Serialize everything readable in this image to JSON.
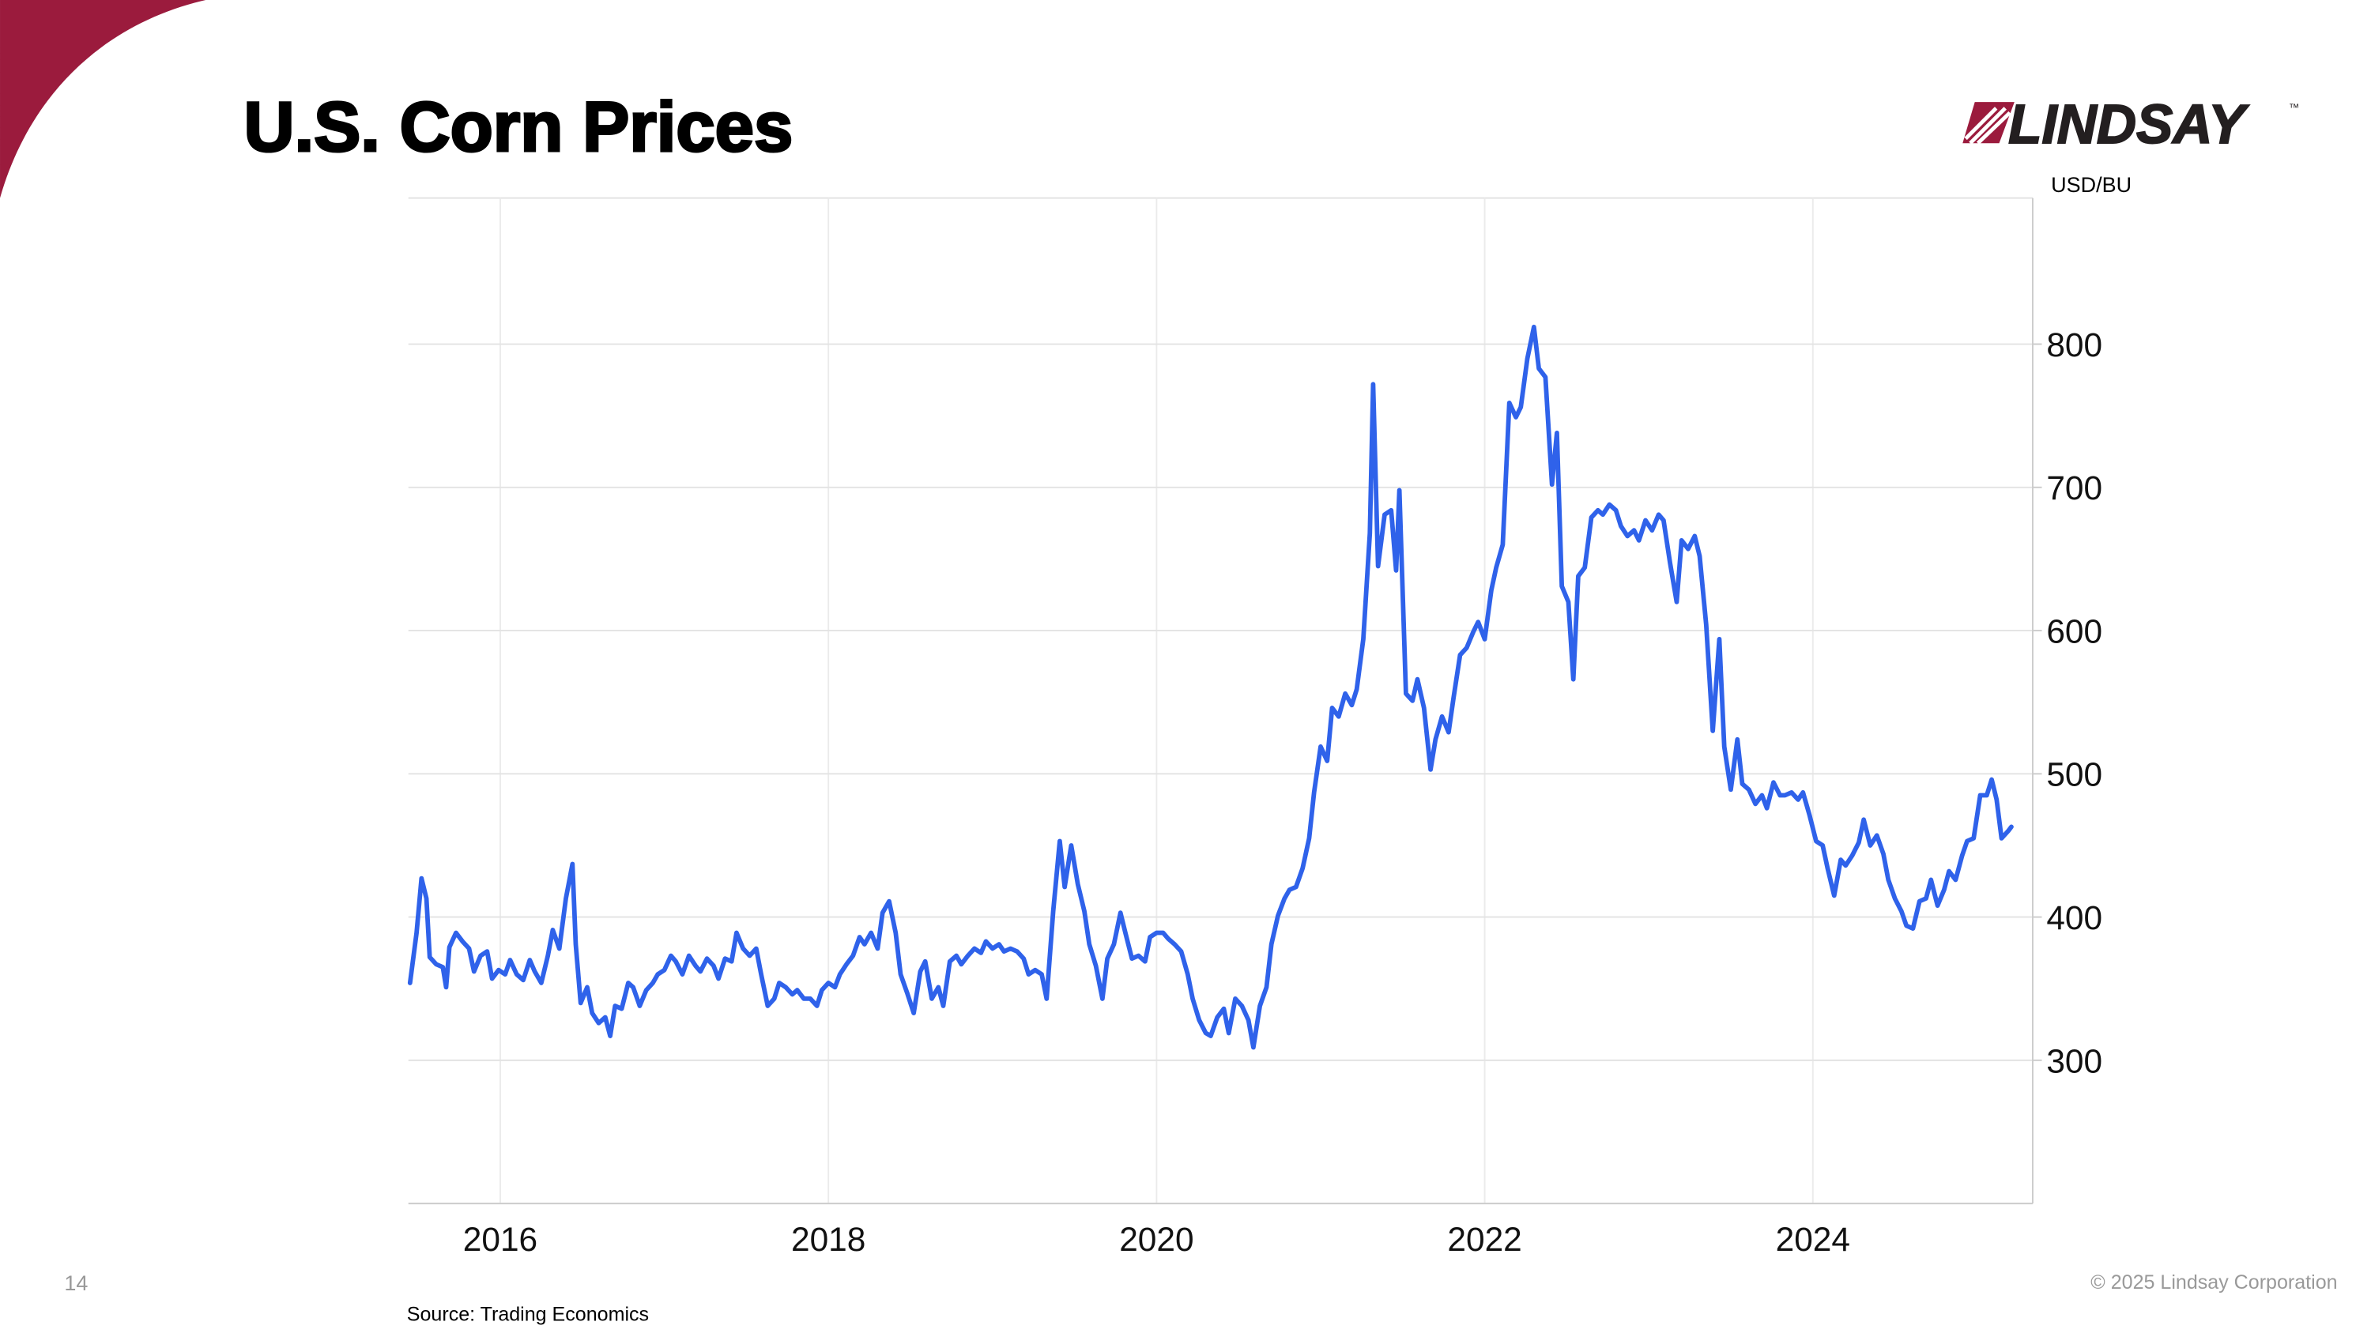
{
  "slide_title": "U.S. Corn Prices",
  "logo": "LINDSAY",
  "logo_mark": "™",
  "page_number": "14",
  "footer": "© 2025 Lindsay Corporation",
  "source": "Source: Trading Economics",
  "chart_data": {
    "type": "line",
    "y_label": "USD/BU",
    "xlim": [
      2015.44,
      2025.34
    ],
    "xticks": [
      2016,
      2018,
      2020,
      2022,
      2024
    ],
    "ylim": [
      200,
      902
    ],
    "yticks": [
      300,
      400,
      500,
      600,
      700,
      800
    ],
    "grid": true,
    "x": [
      2015.45,
      2015.49,
      2015.52,
      2015.55,
      2015.57,
      2015.61,
      2015.65,
      2015.67,
      2015.69,
      2015.73,
      2015.77,
      2015.81,
      2015.84,
      2015.88,
      2015.92,
      2015.95,
      2015.99,
      2016.03,
      2016.06,
      2016.1,
      2016.14,
      2016.18,
      2016.21,
      2016.25,
      2016.29,
      2016.32,
      2016.36,
      2016.4,
      2016.44,
      2016.46,
      2016.49,
      2016.53,
      2016.56,
      2016.6,
      2016.64,
      2016.67,
      2016.7,
      2016.74,
      2016.78,
      2016.81,
      2016.85,
      2016.89,
      2016.93,
      2016.96,
      2017.0,
      2017.04,
      2017.07,
      2017.11,
      2017.15,
      2017.19,
      2017.22,
      2017.26,
      2017.3,
      2017.33,
      2017.37,
      2017.41,
      2017.44,
      2017.48,
      2017.52,
      2017.56,
      2017.59,
      2017.63,
      2017.67,
      2017.7,
      2017.74,
      2017.78,
      2017.81,
      2017.85,
      2017.89,
      2017.93,
      2017.96,
      2018.0,
      2018.04,
      2018.07,
      2018.11,
      2018.15,
      2018.19,
      2018.22,
      2018.26,
      2018.3,
      2018.33,
      2018.37,
      2018.41,
      2018.44,
      2018.48,
      2018.52,
      2018.56,
      2018.59,
      2018.63,
      2018.67,
      2018.7,
      2018.74,
      2018.78,
      2018.81,
      2018.85,
      2018.89,
      2018.93,
      2018.96,
      2019.0,
      2019.04,
      2019.07,
      2019.11,
      2019.15,
      2019.19,
      2019.22,
      2019.26,
      2019.3,
      2019.33,
      2019.37,
      2019.41,
      2019.44,
      2019.48,
      2019.52,
      2019.56,
      2019.59,
      2019.63,
      2019.67,
      2019.7,
      2019.74,
      2019.78,
      2019.81,
      2019.85,
      2019.89,
      2019.93,
      2019.96,
      2020.0,
      2020.04,
      2020.07,
      2020.11,
      2020.15,
      2020.19,
      2020.22,
      2020.26,
      2020.3,
      2020.33,
      2020.37,
      2020.41,
      2020.44,
      2020.48,
      2020.52,
      2020.56,
      2020.59,
      2020.63,
      2020.67,
      2020.7,
      2020.74,
      2020.78,
      2020.81,
      2020.85,
      2020.89,
      2020.93,
      2020.96,
      2021.0,
      2021.04,
      2021.07,
      2021.11,
      2021.15,
      2021.19,
      2021.22,
      2021.26,
      2021.3,
      2021.32,
      2021.35,
      2021.39,
      2021.43,
      2021.46,
      2021.48,
      2021.52,
      2021.56,
      2021.59,
      2021.63,
      2021.67,
      2021.7,
      2021.74,
      2021.78,
      2021.81,
      2021.85,
      2021.89,
      2021.93,
      2021.96,
      2022.0,
      2022.04,
      2022.07,
      2022.11,
      2022.15,
      2022.19,
      2022.22,
      2022.26,
      2022.3,
      2022.33,
      2022.37,
      2022.41,
      2022.44,
      2022.47,
      2022.51,
      2022.54,
      2022.57,
      2022.61,
      2022.65,
      2022.69,
      2022.72,
      2022.76,
      2022.8,
      2022.83,
      2022.87,
      2022.91,
      2022.94,
      2022.98,
      2023.02,
      2023.06,
      2023.09,
      2023.13,
      2023.17,
      2023.2,
      2023.24,
      2023.28,
      2023.31,
      2023.35,
      2023.39,
      2023.43,
      2023.46,
      2023.5,
      2023.54,
      2023.57,
      2023.61,
      2023.65,
      2023.69,
      2023.72,
      2023.76,
      2023.8,
      2023.83,
      2023.87,
      2023.91,
      2023.94,
      2023.98,
      2024.02,
      2024.06,
      2024.09,
      2024.13,
      2024.17,
      2024.2,
      2024.24,
      2024.28,
      2024.31,
      2024.35,
      2024.39,
      2024.43,
      2024.46,
      2024.5,
      2024.54,
      2024.57,
      2024.61,
      2024.65,
      2024.69,
      2024.72,
      2024.76,
      2024.8,
      2024.83,
      2024.87,
      2024.91,
      2024.94,
      2024.98,
      2025.02,
      2025.06,
      2025.09,
      2025.12,
      2025.15,
      2025.19,
      2025.21
    ],
    "series": [
      {
        "color": "#2f62ea",
        "values": [
          354,
          389,
          427,
          413,
          372,
          367,
          365,
          351,
          379,
          389,
          383,
          378,
          362,
          373,
          376,
          357,
          363,
          360,
          370,
          360,
          356,
          370,
          362,
          354,
          373,
          391,
          378,
          413,
          437,
          381,
          340,
          351,
          333,
          326,
          330,
          317,
          338,
          336,
          354,
          351,
          338,
          349,
          354,
          360,
          363,
          373,
          369,
          360,
          373,
          366,
          362,
          371,
          366,
          357,
          371,
          369,
          389,
          378,
          373,
          378,
          360,
          338,
          343,
          354,
          351,
          346,
          349,
          343,
          343,
          338,
          349,
          354,
          351,
          360,
          367,
          373,
          386,
          381,
          389,
          378,
          403,
          411,
          389,
          360,
          347,
          333,
          362,
          369,
          343,
          351,
          338,
          369,
          373,
          367,
          373,
          378,
          375,
          383,
          378,
          381,
          376,
          378,
          376,
          371,
          360,
          363,
          360,
          343,
          404,
          453,
          421,
          450,
          423,
          404,
          381,
          366,
          343,
          371,
          381,
          403,
          389,
          371,
          373,
          369,
          386,
          389,
          389,
          385,
          381,
          376,
          360,
          343,
          328,
          319,
          317,
          330,
          336,
          319,
          343,
          338,
          328,
          309,
          338,
          351,
          381,
          401,
          413,
          419,
          421,
          434,
          455,
          487,
          519,
          509,
          546,
          540,
          556,
          548,
          559,
          594,
          668,
          772,
          645,
          681,
          684,
          642,
          698,
          556,
          551,
          566,
          546,
          503,
          524,
          540,
          529,
          553,
          583,
          588,
          599,
          606,
          594,
          628,
          644,
          660,
          759,
          749,
          756,
          790,
          812,
          783,
          777,
          702,
          738,
          631,
          620,
          566,
          638,
          644,
          679,
          684,
          681,
          688,
          684,
          673,
          666,
          670,
          663,
          677,
          670,
          681,
          677,
          647,
          620,
          663,
          657,
          666,
          652,
          604,
          530,
          594,
          519,
          489,
          524,
          493,
          489,
          479,
          485,
          476,
          494,
          485,
          485,
          487,
          482,
          487,
          471,
          453,
          450,
          434,
          415,
          440,
          436,
          443,
          452,
          468,
          450,
          457,
          444,
          426,
          413,
          404,
          394,
          392,
          411,
          413,
          426,
          408,
          419,
          432,
          426,
          443,
          453,
          455,
          485,
          485,
          496,
          482,
          455,
          460,
          463
        ]
      }
    ]
  }
}
